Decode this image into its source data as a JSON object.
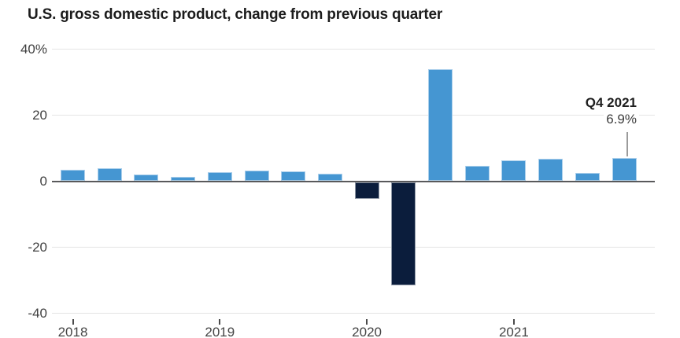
{
  "title": "U.S. gross domestic product, change from previous quarter",
  "colors": {
    "positive_bar": "#4596d2",
    "negative_bar": "#0b1d3c",
    "grid": "#e4e4e4",
    "zero_line": "#59595b",
    "axis_text": "#3f3f3f",
    "title_text": "#1c1c1c",
    "annotation_line": "#9b9b9b"
  },
  "chart_data": {
    "type": "bar",
    "title": "U.S. gross domestic product, change from previous quarter",
    "xlabel": "",
    "ylabel": "",
    "ylim": [
      -40,
      40
    ],
    "grid": "horizontal",
    "legend": "none",
    "categories": [
      "Q1 2018",
      "Q2 2018",
      "Q3 2018",
      "Q4 2018",
      "Q1 2019",
      "Q2 2019",
      "Q3 2019",
      "Q4 2019",
      "Q1 2020",
      "Q2 2020",
      "Q3 2020",
      "Q4 2020",
      "Q1 2021",
      "Q2 2021",
      "Q3 2021",
      "Q4 2021"
    ],
    "values": [
      3.4,
      3.8,
      2.0,
      1.2,
      2.6,
      3.1,
      2.8,
      2.2,
      -5.1,
      -31.2,
      33.8,
      4.5,
      6.3,
      6.7,
      2.3,
      6.9
    ],
    "yticks": [
      40,
      20,
      0,
      -20,
      -40
    ],
    "ytick_labels": [
      "40%",
      "20",
      "0",
      "-20",
      "-40"
    ],
    "xtick_labels": [
      "2018",
      "2019",
      "2020",
      "2021"
    ],
    "annotation": {
      "label": "Q4 2021",
      "value_label": "6.9%",
      "target_category": "Q4 2021"
    }
  }
}
